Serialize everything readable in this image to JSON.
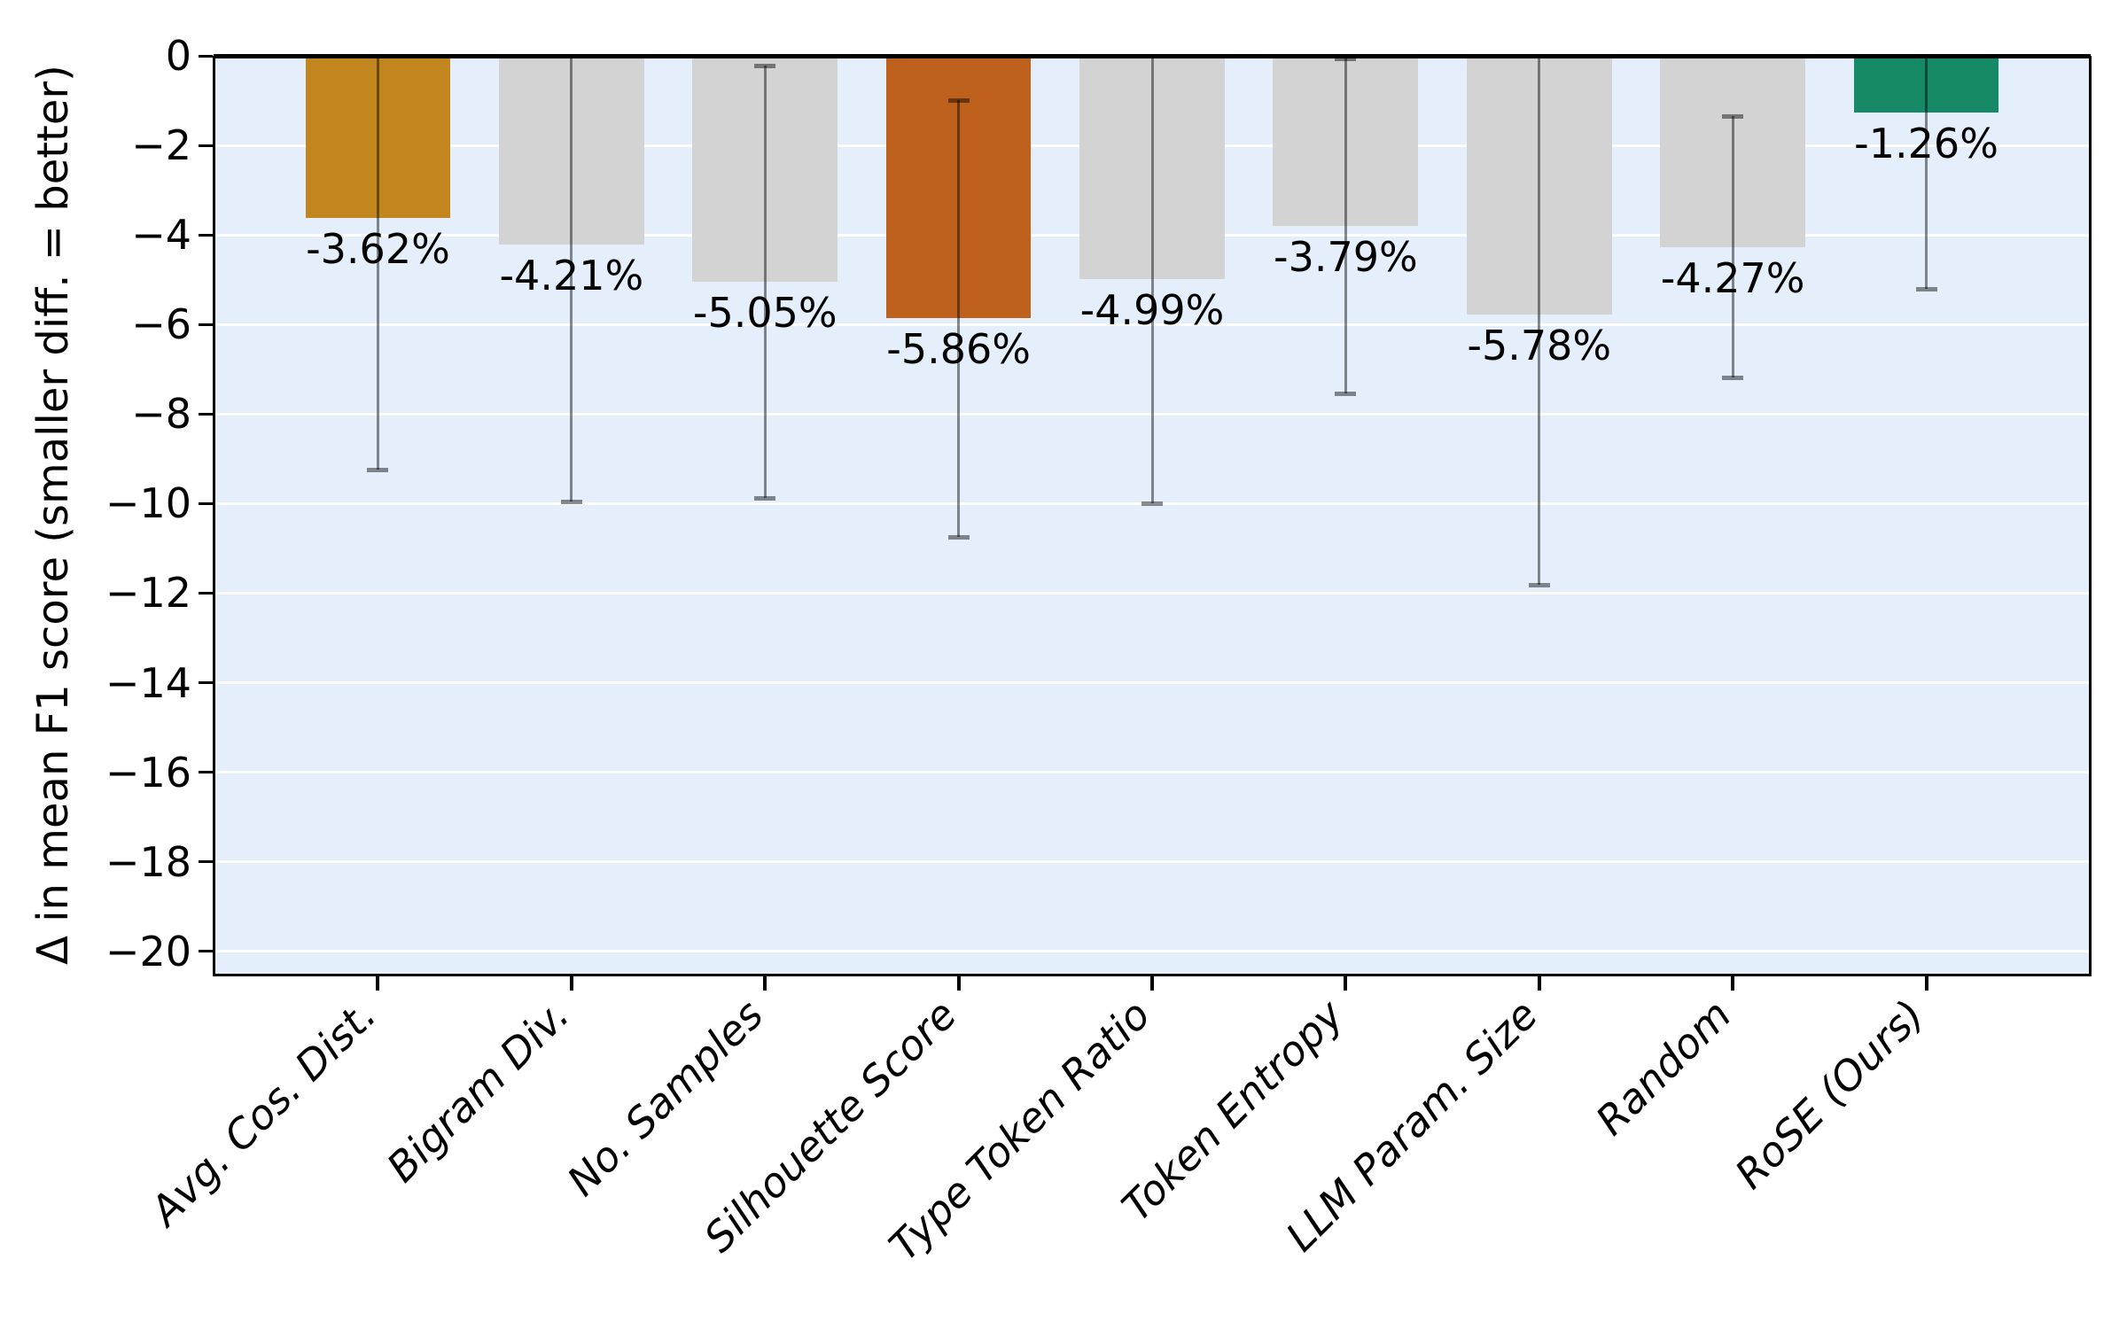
{
  "chart_data": {
    "type": "bar",
    "title": "",
    "xlabel": "",
    "ylabel": "Δ in mean F1 score (smaller diff. = better)",
    "categories": [
      "Avg. Cos. Dist.",
      "Bigram Div.",
      "No. Samples",
      "Silhouette Score",
      "Type Token Ratio",
      "Token Entropy",
      "LLM Param. Size",
      "Random",
      "RoSE (Ours)"
    ],
    "values": [
      -3.62,
      -4.21,
      -5.05,
      -5.86,
      -4.99,
      -3.79,
      -5.78,
      -4.27,
      -1.26
    ],
    "value_labels": [
      "-3.62%",
      "-4.21%",
      "-5.05%",
      "-5.86%",
      "-4.99%",
      "-3.79%",
      "-5.78%",
      "-4.27%",
      "-1.26%"
    ],
    "errors": [
      5.63,
      5.74,
      4.83,
      4.88,
      5.01,
      3.74,
      6.04,
      2.92,
      3.94
    ],
    "bar_colors": [
      "#C1861E",
      "#D3D3D3",
      "#D3D3D3",
      "#BD611D",
      "#D3D3D3",
      "#D3D3D3",
      "#D3D3D3",
      "#D3D3D3",
      "#168A67"
    ],
    "yticks": [
      0,
      -2,
      -4,
      -6,
      -8,
      -10,
      -12,
      -14,
      -16,
      -18,
      -20
    ],
    "ytick_labels": [
      "0",
      "−2",
      "−4",
      "−6",
      "−8",
      "−10",
      "−12",
      "−14",
      "−16",
      "−18",
      "−20"
    ],
    "ylim": [
      -20.5,
      0
    ],
    "xlim": [
      -0.84,
      8.84
    ],
    "bar_width": 0.75,
    "grid": true,
    "legend": null,
    "colors": {
      "plot_background": "#E4EFFB",
      "figure_background": "#FFFFFF",
      "gridline": "#FFFFFF",
      "spine": "#000000",
      "errorbar": "rgba(0,0,0,0.45)",
      "text": "#000000"
    }
  }
}
